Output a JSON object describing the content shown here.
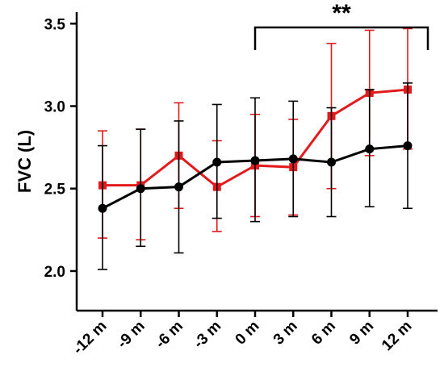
{
  "chart_data": {
    "type": "line",
    "title": "",
    "xlabel": "",
    "ylabel": "FVC (L)",
    "categories": [
      "-12 m",
      "-9 m",
      "-6 m",
      "-3 m",
      "0 m",
      "3 m",
      "6 m",
      "9 m",
      "12 m"
    ],
    "ylim": [
      1.76,
      3.57
    ],
    "yticks": [
      "2.0",
      "2.5",
      "3.0",
      "3.5"
    ],
    "grid": false,
    "series": [
      {
        "color": "#e31a1c",
        "marker": "square",
        "values": [
          2.52,
          2.52,
          2.7,
          2.51,
          2.64,
          2.63,
          2.94,
          3.08,
          3.1
        ],
        "error_low": [
          2.2,
          2.19,
          2.38,
          2.24,
          2.33,
          2.34,
          2.5,
          2.7,
          2.74
        ],
        "error_high": [
          2.85,
          2.86,
          3.02,
          2.79,
          2.95,
          2.92,
          3.38,
          3.46,
          3.47
        ]
      },
      {
        "color": "#000000",
        "marker": "circle",
        "values": [
          2.38,
          2.5,
          2.51,
          2.66,
          2.67,
          2.68,
          2.66,
          2.74,
          2.76
        ],
        "error_low": [
          2.01,
          2.15,
          2.11,
          2.32,
          2.3,
          2.33,
          2.33,
          2.39,
          2.38
        ],
        "error_high": [
          2.76,
          2.86,
          2.91,
          3.01,
          3.05,
          3.03,
          2.99,
          3.1,
          3.14
        ]
      }
    ],
    "annotations": [
      {
        "text": "**",
        "from_category": "0 m",
        "to_category": "12 m"
      }
    ]
  }
}
